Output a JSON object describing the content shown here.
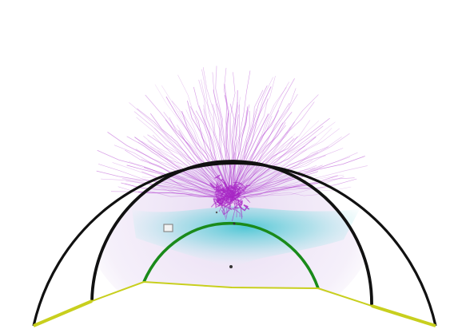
{
  "diagram": {
    "type": "tunnel-cross-section",
    "colors": {
      "background": "#ffffff",
      "outer_ring": "#111111",
      "inner_ring": "#111111",
      "lining": "#1a8a1a",
      "invert": "#c8cf1e",
      "plastic_zone": "#35c4d0",
      "cracks": "#b13fd0",
      "crack_core": "#a726c4",
      "inclusion": "#8a8a8a"
    },
    "elements": [
      "outer-ring",
      "inner-ring",
      "lining-arch",
      "invert-base",
      "crack-network",
      "damage-zone",
      "inclusion-marker"
    ]
  }
}
